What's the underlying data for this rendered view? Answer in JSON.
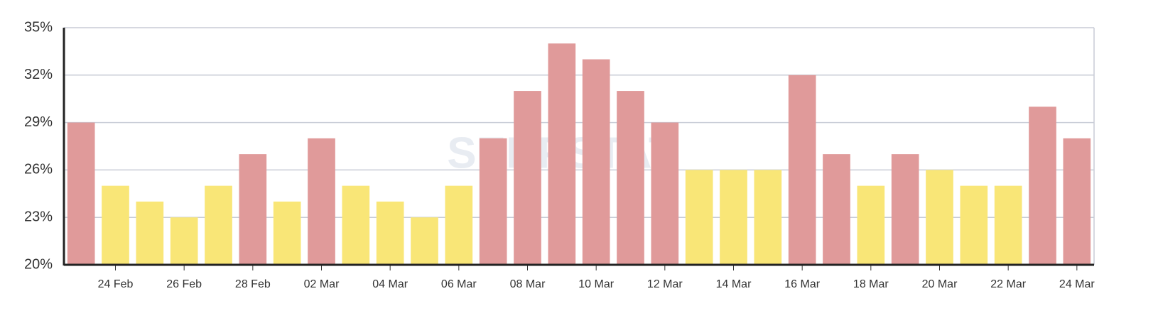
{
  "chart_data": {
    "type": "bar",
    "watermark": "SERPSTAT",
    "categories": [
      null,
      "24 Feb",
      null,
      "26 Feb",
      null,
      "28 Feb",
      null,
      "02 Mar",
      null,
      "04 Mar",
      null,
      "06 Mar",
      null,
      "08 Mar",
      null,
      "10 Mar",
      null,
      "12 Mar",
      null,
      "14 Mar",
      null,
      "16 Mar",
      null,
      "18 Mar",
      null,
      "20 Mar",
      null,
      "22 Mar",
      null,
      "24 Mar"
    ],
    "values": [
      29,
      25,
      24,
      23,
      25,
      27,
      24,
      28,
      25,
      24,
      23,
      25,
      28,
      31,
      34,
      33,
      31,
      29,
      26,
      26,
      26,
      32,
      27,
      25,
      27,
      26,
      25,
      25,
      30,
      28
    ],
    "colors": [
      "#e09a9a",
      "#f9e677",
      "#f9e677",
      "#f9e677",
      "#f9e677",
      "#e09a9a",
      "#f9e677",
      "#e09a9a",
      "#f9e677",
      "#f9e677",
      "#f9e677",
      "#f9e677",
      "#e09a9a",
      "#e09a9a",
      "#e09a9a",
      "#e09a9a",
      "#e09a9a",
      "#e09a9a",
      "#f9e677",
      "#f9e677",
      "#f9e677",
      "#e09a9a",
      "#e09a9a",
      "#f9e677",
      "#e09a9a",
      "#f9e677",
      "#f9e677",
      "#f9e677",
      "#e09a9a",
      "#e09a9a"
    ],
    "ylim": [
      20,
      35
    ],
    "yticks": [
      {
        "value": 20,
        "label": "20%"
      },
      {
        "value": 23,
        "label": "23%"
      },
      {
        "value": 26,
        "label": "26%"
      },
      {
        "value": 29,
        "label": "29%"
      },
      {
        "value": 32,
        "label": "32%"
      },
      {
        "value": 35,
        "label": "35%"
      }
    ],
    "grid": true
  }
}
